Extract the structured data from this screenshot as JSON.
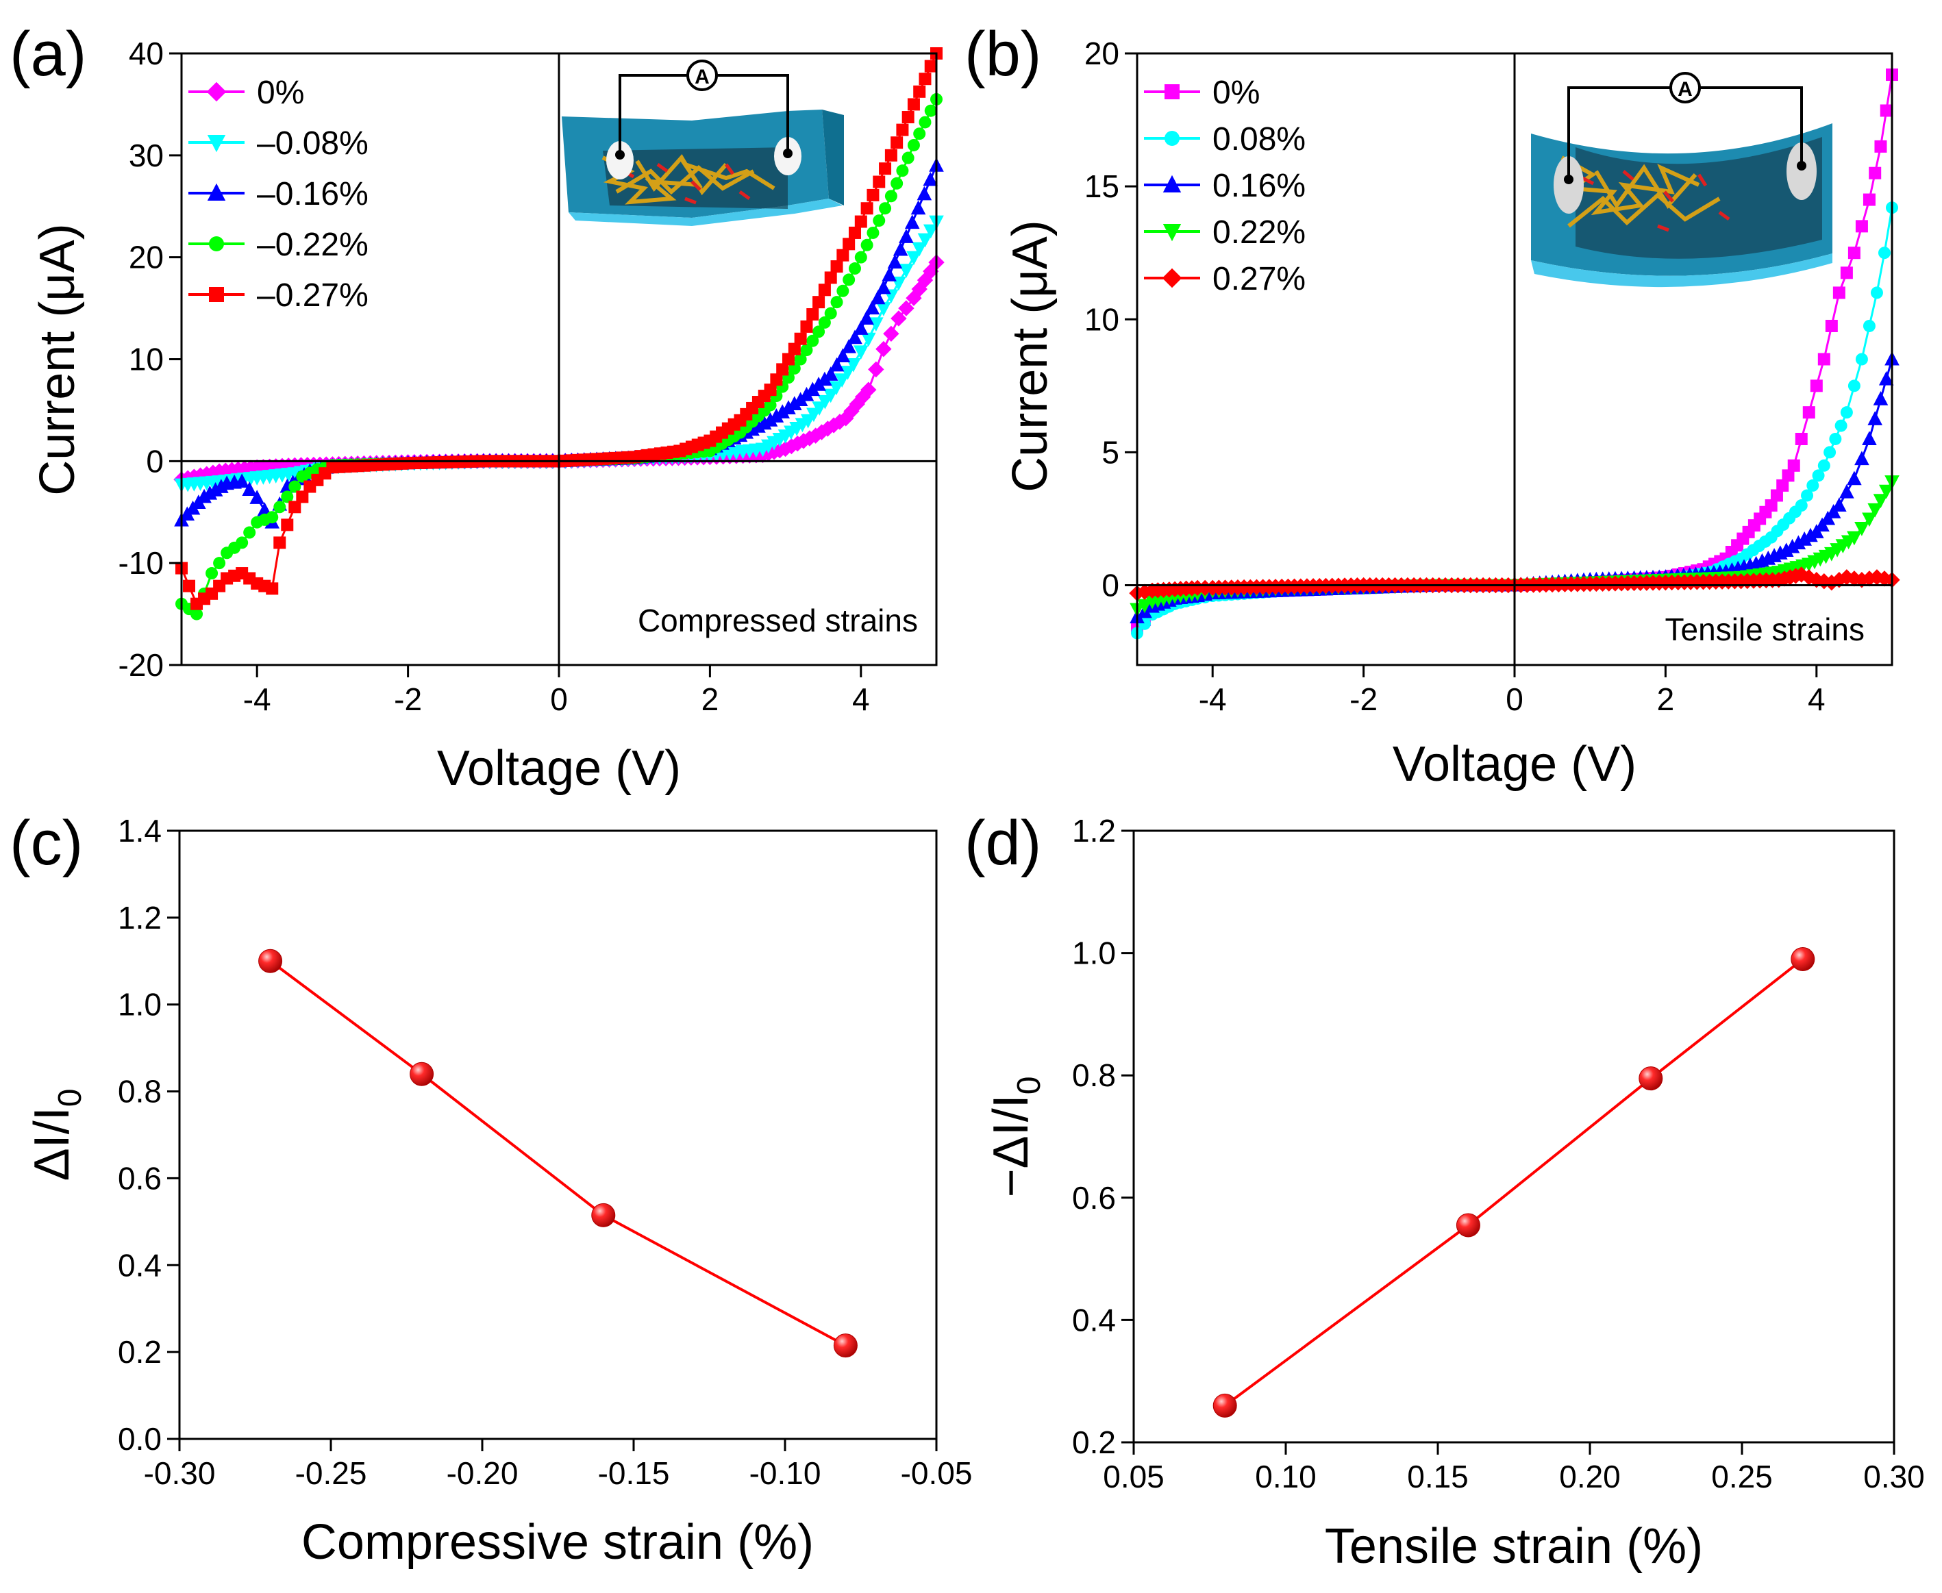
{
  "figure": {
    "panels": [
      {
        "letter": "(a)"
      },
      {
        "letter": "(b)"
      },
      {
        "letter": "(c)"
      },
      {
        "letter": "(d)"
      }
    ]
  },
  "chart_data": [
    {
      "id": "a",
      "type": "line",
      "panel_label": "(a)",
      "title": "",
      "xlabel": "Voltage (V)",
      "ylabel": "Current (μA)",
      "xlim": [
        -5,
        5
      ],
      "ylim": [
        -20,
        40
      ],
      "xticks": [
        -4,
        -2,
        0,
        2,
        4
      ],
      "yticks": [
        -20,
        -10,
        0,
        10,
        20,
        30,
        40
      ],
      "zero_lines": true,
      "legend_position": "top-left",
      "annotation": "Compressed strains",
      "inset": "bent device schematic with ammeter A (compressed)",
      "inset_symbol": "A",
      "series": [
        {
          "name": "0%",
          "color": "#ff00ff",
          "marker": "diamond",
          "x": [
            -5,
            -4.5,
            -4,
            -3.5,
            -3,
            -2,
            -1,
            0,
            1,
            2,
            2.7,
            3.0,
            3.4,
            3.8,
            4.1,
            4.3,
            4.5,
            4.7,
            5.0
          ],
          "y": [
            -1.8,
            -1.0,
            -0.6,
            -0.4,
            -0.3,
            -0.1,
            0,
            0,
            0.2,
            0.4,
            0.6,
            1.2,
            2.5,
            4.2,
            7.0,
            11.0,
            14.0,
            16.0,
            19.5
          ]
        },
        {
          "name": "–0.08%",
          "color": "#00ffff",
          "marker": "triangle-down",
          "x": [
            -5,
            -4.5,
            -4,
            -3.5,
            -3,
            -2,
            -1,
            0,
            1,
            2,
            2.7,
            3.0,
            3.3,
            3.6,
            3.9,
            4.1,
            4.3,
            4.5,
            4.7,
            5.0
          ],
          "y": [
            -2.3,
            -2.0,
            -1.6,
            -1.2,
            -0.5,
            -0.2,
            0,
            0,
            0.3,
            0.6,
            1.2,
            2.5,
            4.0,
            6.5,
            9.5,
            12.0,
            15.0,
            17.5,
            20.0,
            23.5
          ]
        },
        {
          "name": "–0.16%",
          "color": "#0000ff",
          "marker": "triangle-up",
          "x": [
            -5,
            -4.7,
            -4.4,
            -4.2,
            -4.0,
            -3.8,
            -3.6,
            -3.3,
            -3.0,
            -2,
            -1,
            0,
            1,
            2,
            2.4,
            2.8,
            3.2,
            3.6,
            4.0,
            4.3,
            4.6,
            5.0
          ],
          "y": [
            -5.8,
            -3.5,
            -2.2,
            -2.0,
            -3.6,
            -6.0,
            -2.5,
            -1.0,
            -0.5,
            -0.2,
            0,
            0,
            0.3,
            1.2,
            2.5,
            4.0,
            6.0,
            8.5,
            13.0,
            17.0,
            22.0,
            29.0
          ]
        },
        {
          "name": "–0.22%",
          "color": "#00ff00",
          "marker": "circle",
          "x": [
            -5,
            -4.8,
            -4.6,
            -4.4,
            -4.2,
            -4.0,
            -3.8,
            -3.6,
            -3.4,
            -3.2,
            -3.0,
            -2,
            -1,
            0,
            1,
            2,
            2.4,
            2.8,
            3.2,
            3.6,
            4.0,
            4.4,
            4.7,
            5.0
          ],
          "y": [
            -14.0,
            -15.0,
            -11.0,
            -9.0,
            -8.0,
            -6.0,
            -5.5,
            -3.5,
            -1.5,
            -0.8,
            -0.4,
            -0.2,
            0,
            0,
            0.3,
            1.0,
            2.8,
            5.5,
            10.0,
            14.5,
            20.0,
            26.0,
            31.0,
            35.5
          ]
        },
        {
          "name": "–0.27%",
          "color": "#ff0000",
          "marker": "square",
          "x": [
            -5,
            -4.8,
            -4.6,
            -4.4,
            -4.2,
            -4.0,
            -3.8,
            -3.7,
            -3.5,
            -3.3,
            -3.1,
            -3.0,
            -2,
            -1,
            0,
            1,
            1.6,
            2.0,
            2.4,
            2.8,
            3.2,
            3.6,
            4.0,
            4.4,
            4.7,
            5.0
          ],
          "y": [
            -10.5,
            -14.0,
            -13.0,
            -11.5,
            -11.0,
            -12.0,
            -12.5,
            -8.0,
            -4.5,
            -2.5,
            -1.2,
            -0.6,
            -0.2,
            0,
            0,
            0.4,
            1.0,
            2.0,
            4.0,
            7.0,
            12.0,
            18.0,
            23.5,
            30.0,
            35.0,
            40.0
          ]
        }
      ]
    },
    {
      "id": "b",
      "type": "line",
      "panel_label": "(b)",
      "title": "",
      "xlabel": "Voltage (V)",
      "ylabel": "Current (μA)",
      "xlim": [
        -5,
        5
      ],
      "ylim": [
        -3,
        20
      ],
      "xticks": [
        -4,
        -2,
        0,
        2,
        4
      ],
      "yticks": [
        0,
        5,
        10,
        15,
        20
      ],
      "zero_lines": true,
      "legend_position": "top-left",
      "annotation": "Tensile strains",
      "inset": "bent device schematic with ammeter A (tensile)",
      "inset_symbol": "A",
      "series": [
        {
          "name": "0%",
          "color": "#ff00ff",
          "marker": "square",
          "x": [
            -5,
            -4.8,
            -4.5,
            -4.2,
            -4,
            -3,
            -2,
            -1,
            0,
            1,
            2,
            2.5,
            2.8,
            3.1,
            3.4,
            3.7,
            3.9,
            4.1,
            4.3,
            4.5,
            4.7,
            4.85,
            5.0
          ],
          "y": [
            -1.6,
            -1.0,
            -0.6,
            -0.4,
            -0.3,
            -0.2,
            -0.1,
            0,
            0,
            0.1,
            0.3,
            0.6,
            1.0,
            2.0,
            3.0,
            4.5,
            6.5,
            8.5,
            11.0,
            12.5,
            14.5,
            16.5,
            19.2
          ]
        },
        {
          "name": "0.08%",
          "color": "#00ffff",
          "marker": "circle",
          "x": [
            -5,
            -4.8,
            -4.5,
            -4.2,
            -4,
            -3,
            -2,
            -1,
            0,
            1,
            2,
            2.6,
            3.0,
            3.4,
            3.8,
            4.1,
            4.4,
            4.6,
            4.8,
            4.9,
            5.0
          ],
          "y": [
            -1.8,
            -1.1,
            -0.7,
            -0.5,
            -0.4,
            -0.2,
            -0.1,
            0,
            0,
            0.1,
            0.2,
            0.5,
            1.0,
            1.8,
            3.0,
            4.5,
            6.5,
            8.5,
            11.0,
            12.5,
            14.2
          ]
        },
        {
          "name": "0.16%",
          "color": "#0000ff",
          "marker": "triangle-up",
          "x": [
            -5,
            -4.8,
            -4.5,
            -4.2,
            -4,
            -3,
            -2,
            -1,
            0,
            1,
            2,
            2.8,
            3.2,
            3.6,
            4.0,
            4.3,
            4.5,
            4.7,
            4.85,
            5.0
          ],
          "y": [
            -1.2,
            -0.8,
            -0.5,
            -0.4,
            -0.3,
            -0.2,
            -0.1,
            0,
            0,
            0.2,
            0.3,
            0.5,
            0.8,
            1.3,
            2.0,
            3.0,
            4.0,
            5.5,
            7.0,
            8.5
          ]
        },
        {
          "name": "0.22%",
          "color": "#00ff00",
          "marker": "triangle-down",
          "x": [
            -5,
            -4.8,
            -4.5,
            -4.2,
            -4,
            -3,
            -2,
            -1,
            0,
            1,
            2,
            3,
            3.5,
            3.9,
            4.2,
            4.5,
            4.7,
            4.85,
            5.0
          ],
          "y": [
            -0.9,
            -0.6,
            -0.4,
            -0.3,
            -0.2,
            -0.1,
            -0.05,
            0,
            0,
            0.1,
            0.2,
            0.3,
            0.5,
            0.8,
            1.2,
            1.8,
            2.5,
            3.2,
            3.9
          ]
        },
        {
          "name": "0.27%",
          "color": "#ff0000",
          "marker": "diamond",
          "x": [
            -5,
            -4.8,
            -4.5,
            -4.2,
            -4,
            -3,
            -2,
            -1,
            0,
            1,
            2,
            3,
            3.5,
            3.8,
            4.0,
            4.2,
            4.4,
            4.6,
            4.8,
            5.0
          ],
          "y": [
            -0.3,
            -0.2,
            -0.15,
            -0.1,
            -0.1,
            -0.05,
            0,
            0,
            0,
            0.05,
            0.1,
            0.15,
            0.2,
            0.4,
            0.2,
            0.1,
            0.3,
            0.2,
            0.3,
            0.2
          ]
        }
      ]
    },
    {
      "id": "c",
      "type": "line",
      "panel_label": "(c)",
      "title": "",
      "xlabel": "Compressive strain (%)",
      "ylabel_main": "ΔI/I",
      "ylabel_sub": "0",
      "xlim": [
        -0.3,
        -0.05
      ],
      "ylim": [
        0.0,
        1.4
      ],
      "xticks": [
        -0.3,
        -0.25,
        -0.2,
        -0.15,
        -0.1,
        -0.05
      ],
      "xtick_labels": [
        "-0.30",
        "-0.25",
        "-0.20",
        "-0.15",
        "-0.10",
        "-0.05"
      ],
      "yticks": [
        0.0,
        0.2,
        0.4,
        0.6,
        0.8,
        1.0,
        1.2,
        1.4
      ],
      "ytick_labels": [
        "0.0",
        "0.2",
        "0.4",
        "0.6",
        "0.8",
        "1.0",
        "1.2",
        "1.4"
      ],
      "color": "#ff0000",
      "series": [
        {
          "name": "ΔI/I0",
          "x": [
            -0.27,
            -0.22,
            -0.16,
            -0.08
          ],
          "y": [
            1.1,
            0.84,
            0.515,
            0.215
          ]
        }
      ]
    },
    {
      "id": "d",
      "type": "line",
      "panel_label": "(d)",
      "title": "",
      "xlabel": "Tensile strain (%)",
      "ylabel_main": "−ΔI/I",
      "ylabel_sub": "0",
      "xlim": [
        0.05,
        0.3
      ],
      "ylim": [
        0.2,
        1.2
      ],
      "xticks": [
        0.05,
        0.1,
        0.15,
        0.2,
        0.25,
        0.3
      ],
      "xtick_labels": [
        "0.05",
        "0.10",
        "0.15",
        "0.20",
        "0.25",
        "0.30"
      ],
      "yticks": [
        0.2,
        0.4,
        0.6,
        0.8,
        1.0,
        1.2
      ],
      "ytick_labels": [
        "0.2",
        "0.4",
        "0.6",
        "0.8",
        "1.0",
        "1.2"
      ],
      "color": "#ff0000",
      "series": [
        {
          "name": "−ΔI/I0",
          "x": [
            0.08,
            0.16,
            0.22,
            0.27
          ],
          "y": [
            0.26,
            0.555,
            0.795,
            0.99
          ]
        }
      ]
    }
  ]
}
